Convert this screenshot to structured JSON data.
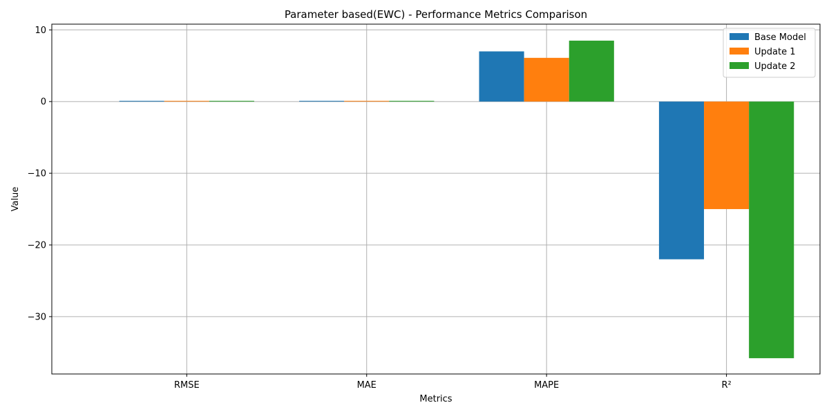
{
  "chart_data": {
    "type": "bar",
    "title": "Parameter based(EWC) - Performance Metrics Comparison",
    "xlabel": "Metrics",
    "ylabel": "Value",
    "categories": [
      "RMSE",
      "MAE",
      "MAPE",
      "R²"
    ],
    "series": [
      {
        "name": "Base Model",
        "color": "#1f77b4",
        "values": [
          0.1,
          0.1,
          7.0,
          -22.0
        ]
      },
      {
        "name": "Update 1",
        "color": "#ff7f0e",
        "values": [
          0.1,
          0.1,
          6.1,
          -15.0
        ]
      },
      {
        "name": "Update 2",
        "color": "#2ca02c",
        "values": [
          0.1,
          0.1,
          8.5,
          -35.8
        ]
      }
    ],
    "ylim": [
      -38,
      10.8
    ],
    "yticks": [
      10,
      0,
      -10,
      -20,
      -30
    ],
    "ytick_labels": [
      "10",
      "0",
      "−10",
      "−20",
      "−30"
    ],
    "grid": true,
    "legend_position": "top-right"
  }
}
